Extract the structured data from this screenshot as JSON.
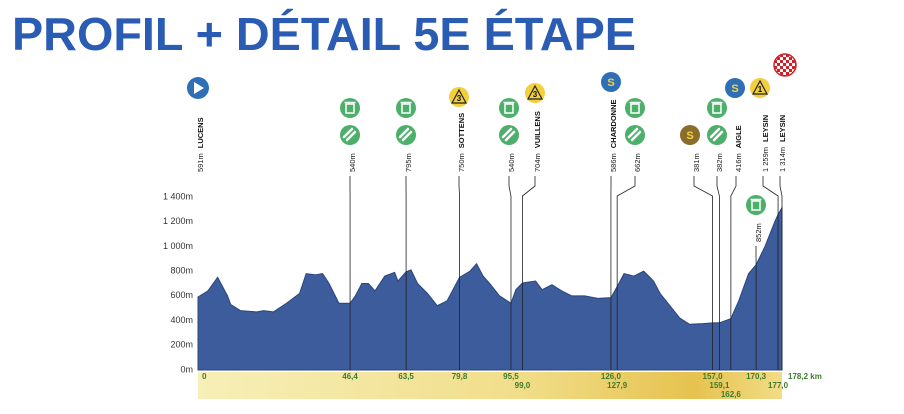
{
  "chart_data": {
    "type": "area",
    "title": "PROFIL + DÉTAIL 5E ÉTAPE",
    "color": "#3c5c9c",
    "x": [
      0,
      3,
      6,
      9,
      10,
      13,
      18,
      20,
      23,
      27,
      31,
      33,
      36,
      38,
      40,
      43,
      46.4,
      48,
      50,
      52,
      54,
      57,
      60,
      61,
      63.5,
      65,
      67,
      70,
      73,
      76,
      79.8,
      83,
      85,
      87,
      89,
      92,
      95.5,
      97,
      99,
      103,
      105,
      108,
      111,
      114,
      118,
      122,
      126,
      128,
      130,
      133,
      136,
      139,
      141,
      144,
      147,
      150,
      154,
      157,
      159.1,
      161,
      162.6,
      165,
      168,
      170.3,
      173,
      176,
      177,
      178.2
    ],
    "values": [
      591,
      640,
      750,
      600,
      530,
      480,
      470,
      480,
      470,
      540,
      620,
      780,
      770,
      780,
      700,
      540,
      540,
      600,
      700,
      700,
      640,
      760,
      790,
      720,
      795,
      810,
      700,
      620,
      520,
      560,
      750,
      800,
      860,
      760,
      700,
      600,
      540,
      650,
      704,
      720,
      650,
      690,
      640,
      600,
      600,
      580,
      586,
      680,
      780,
      760,
      800,
      720,
      620,
      520,
      420,
      370,
      375,
      381,
      382,
      400,
      416,
      560,
      780,
      852,
      1000,
      1200,
      1259,
      1314
    ],
    "xlim": [
      0,
      178.2
    ],
    "ylim": [
      0,
      1400
    ],
    "yticks": [
      {
        "value": 0,
        "label": "0m"
      },
      {
        "value": 200,
        "label": "200m"
      },
      {
        "value": 400,
        "label": "400m"
      },
      {
        "value": 600,
        "label": "600m"
      },
      {
        "value": 800,
        "label": "800m"
      },
      {
        "value": 1000,
        "label": "1 000m"
      },
      {
        "value": 1200,
        "label": "1 200m"
      },
      {
        "value": 1400,
        "label": "1 400m"
      }
    ],
    "xticks": [
      0,
      {
        "value": 46.4,
        "label": "46,4"
      },
      {
        "value": 63.5,
        "label": "63,5"
      },
      {
        "value": 79.8,
        "label": "79,8"
      },
      {
        "value": 95.5,
        "label": "95,5"
      },
      {
        "value": 99.0,
        "label": "99,0"
      },
      {
        "value": 126.0,
        "label": "126,0"
      },
      {
        "value": 127.9,
        "label": "127,9"
      },
      {
        "value": 157.0,
        "label": "157,0"
      },
      {
        "value": 159.1,
        "label": "159,1"
      },
      {
        "value": 162.6,
        "label": "162,6"
      },
      {
        "value": 170.3,
        "label": "170,3"
      },
      {
        "value": 177.0,
        "label": "177,0"
      },
      {
        "value": 178.2,
        "label": "178,2 km"
      }
    ],
    "annotations": [
      {
        "x": 0,
        "altitude": "591m",
        "name": "LUCENS",
        "icons": [
          {
            "kind": "start"
          }
        ]
      },
      {
        "x": 46.4,
        "altitude": "540m",
        "icons": [
          {
            "kind": "feed"
          },
          {
            "kind": "bottle"
          }
        ]
      },
      {
        "x": 63.5,
        "altitude": "795m",
        "icons": [
          {
            "kind": "feed"
          },
          {
            "kind": "bottle"
          }
        ]
      },
      {
        "x": 79.8,
        "altitude": "750m",
        "name": "SOTTENS",
        "icons": [
          {
            "kind": "climb",
            "label": "3"
          }
        ]
      },
      {
        "x": 95.5,
        "altitude": "540m",
        "icons": [
          {
            "kind": "feed"
          },
          {
            "kind": "bottle"
          }
        ]
      },
      {
        "x": 99.0,
        "altitude": "704m",
        "name": "VUILLENS",
        "icons": [
          {
            "kind": "climb",
            "label": "3"
          }
        ]
      },
      {
        "x": 126.0,
        "altitude": "586m",
        "name": "CHARDONNE",
        "icons": [
          {
            "kind": "sprint",
            "label": "S",
            "color": "#2f6fb6"
          }
        ]
      },
      {
        "x": 127.9,
        "altitude": "662m",
        "icons": [
          {
            "kind": "feed"
          },
          {
            "kind": "bottle"
          }
        ]
      },
      {
        "x": 157.0,
        "altitude": "381m",
        "icons": [
          {
            "kind": "sprint",
            "label": "S",
            "color": "#8a6d2a"
          }
        ]
      },
      {
        "x": 159.1,
        "altitude": "382m",
        "icons": [
          {
            "kind": "feed"
          },
          {
            "kind": "bottle"
          }
        ]
      },
      {
        "x": 162.6,
        "altitude": "416m",
        "name": "AIGLE",
        "icons": [
          {
            "kind": "sprint",
            "label": "S",
            "color": "#2f6fb6"
          }
        ]
      },
      {
        "x": 170.3,
        "altitude": "852m",
        "icons": [
          {
            "kind": "feed"
          }
        ]
      },
      {
        "x": 177.0,
        "altitude": "1 259m",
        "name": "LEYSIN",
        "icons": [
          {
            "kind": "climb",
            "label": "1"
          }
        ]
      },
      {
        "x": 178.2,
        "altitude": "1 314m",
        "name": "LEYSIN",
        "icons": [
          {
            "kind": "finish"
          }
        ]
      }
    ]
  }
}
